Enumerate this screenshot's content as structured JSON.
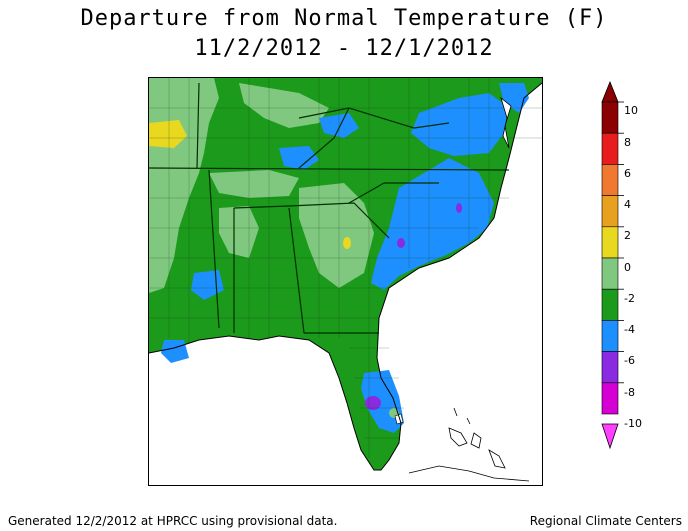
{
  "title_line1": "Departure from Normal Temperature (F)",
  "title_line2": "11/2/2012 - 12/1/2012",
  "legend": {
    "labels": [
      "10",
      "8",
      "6",
      "4",
      "2",
      "0",
      "-2",
      "-4",
      "-6",
      "-8",
      "-10"
    ],
    "colors": [
      "#8b0000",
      "#e81e1e",
      "#f07830",
      "#e8a020",
      "#e8d820",
      "#80c880",
      "#1c9a1c",
      "#1e8fff",
      "#8a2be2",
      "#d400d4",
      "#ff40ff"
    ]
  },
  "footer_left": "Generated 12/2/2012 at HPRCC using provisional data.",
  "footer_right": "Regional Climate Centers",
  "colors": {
    "light_green": "#80c880",
    "green": "#1c9a1c",
    "blue": "#1e8fff",
    "yellow": "#e8d820",
    "purple": "#8a2be2"
  }
}
